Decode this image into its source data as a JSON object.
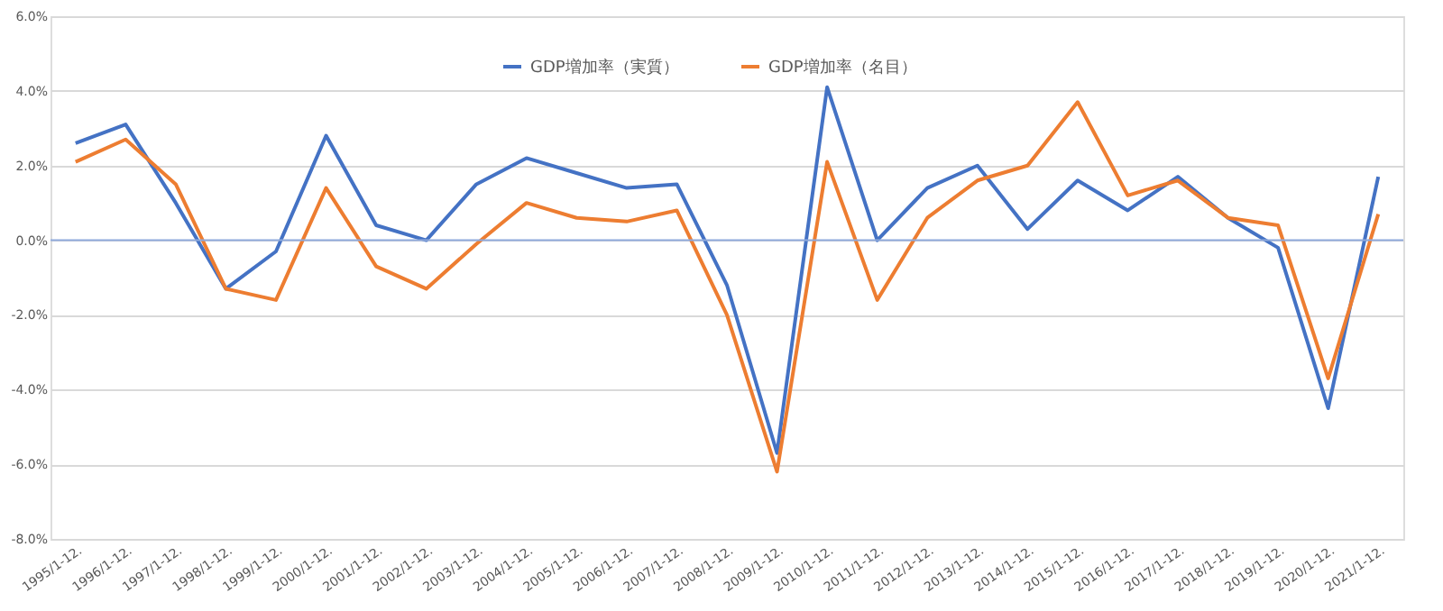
{
  "chart_data": {
    "type": "line",
    "categories": [
      "1995/1-12.",
      "1996/1-12.",
      "1997/1-12.",
      "1998/1-12.",
      "1999/1-12.",
      "2000/1-12.",
      "2001/1-12.",
      "2002/1-12.",
      "2003/1-12.",
      "2004/1-12.",
      "2005/1-12.",
      "2006/1-12.",
      "2007/1-12.",
      "2008/1-12.",
      "2009/1-12.",
      "2010/1-12.",
      "2011/1-12.",
      "2012/1-12.",
      "2013/1-12.",
      "2014/1-12.",
      "2015/1-12.",
      "2016/1-12.",
      "2017/1-12.",
      "2018/1-12.",
      "2019/1-12.",
      "2020/1-12.",
      "2021/1-12."
    ],
    "series": [
      {
        "name": "GDP増加率（実質）",
        "color": "#4472c4",
        "values": [
          2.6,
          3.1,
          1.0,
          -1.3,
          -0.3,
          2.8,
          0.4,
          0.0,
          1.5,
          2.2,
          1.8,
          1.4,
          1.5,
          -1.2,
          -5.7,
          4.1,
          0.0,
          1.4,
          2.0,
          0.3,
          1.6,
          0.8,
          1.7,
          0.6,
          -0.2,
          -4.5,
          1.7
        ]
      },
      {
        "name": "GDP増加率（名目）",
        "color": "#ed7d31",
        "values": [
          2.1,
          2.7,
          1.5,
          -1.3,
          -1.6,
          1.4,
          -0.7,
          -1.3,
          -0.1,
          1.0,
          0.6,
          0.5,
          0.8,
          -2.0,
          -6.2,
          2.1,
          -1.6,
          0.6,
          1.6,
          2.0,
          3.7,
          1.2,
          1.6,
          0.6,
          0.4,
          -3.7,
          0.7
        ]
      }
    ],
    "ylim": [
      -8,
      6
    ],
    "yticks": [
      {
        "value": -8,
        "label": "-8.0%"
      },
      {
        "value": -6,
        "label": "-6.0%"
      },
      {
        "value": -4,
        "label": "-4.0%"
      },
      {
        "value": -2,
        "label": "-2.0%"
      },
      {
        "value": 0,
        "label": "0.0%"
      },
      {
        "value": 2,
        "label": "2.0%"
      },
      {
        "value": 4,
        "label": "4.0%"
      },
      {
        "value": 6,
        "label": "6.0%"
      }
    ],
    "ref_lines": [
      {
        "axis": "y",
        "value": 0,
        "color": "#8faadc"
      }
    ],
    "grid": "y",
    "legend": "top",
    "marker": "none",
    "line_style": "solid"
  }
}
